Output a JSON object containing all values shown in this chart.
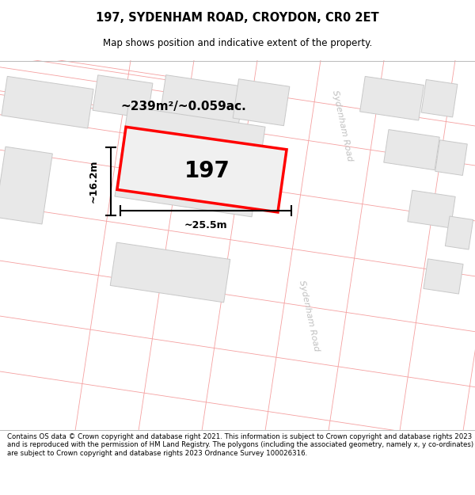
{
  "title_line1": "197, SYDENHAM ROAD, CROYDON, CR0 2ET",
  "title_line2": "Map shows position and indicative extent of the property.",
  "footer_text": "Contains OS data © Crown copyright and database right 2021. This information is subject to Crown copyright and database rights 2023 and is reproduced with the permission of HM Land Registry. The polygons (including the associated geometry, namely x, y co-ordinates) are subject to Crown copyright and database rights 2023 Ordnance Survey 100026316.",
  "area_label": "~239m²/~0.059ac.",
  "number_label": "197",
  "width_label": "~25.5m",
  "height_label": "~16.2m",
  "road_label": "Sydenham Road",
  "bg_color": "#f8f8f8",
  "map_bg": "#f8f8f8",
  "road_fill": "#ffffff",
  "building_fill": "#e8e8e8",
  "building_border": "#c8c8c8",
  "plot_fill": "#eeeeee",
  "plot_border": "#ff0000",
  "pink_color": "#f5a0a0",
  "road_label_color": "#c0c0c0",
  "dim_color": "#000000"
}
